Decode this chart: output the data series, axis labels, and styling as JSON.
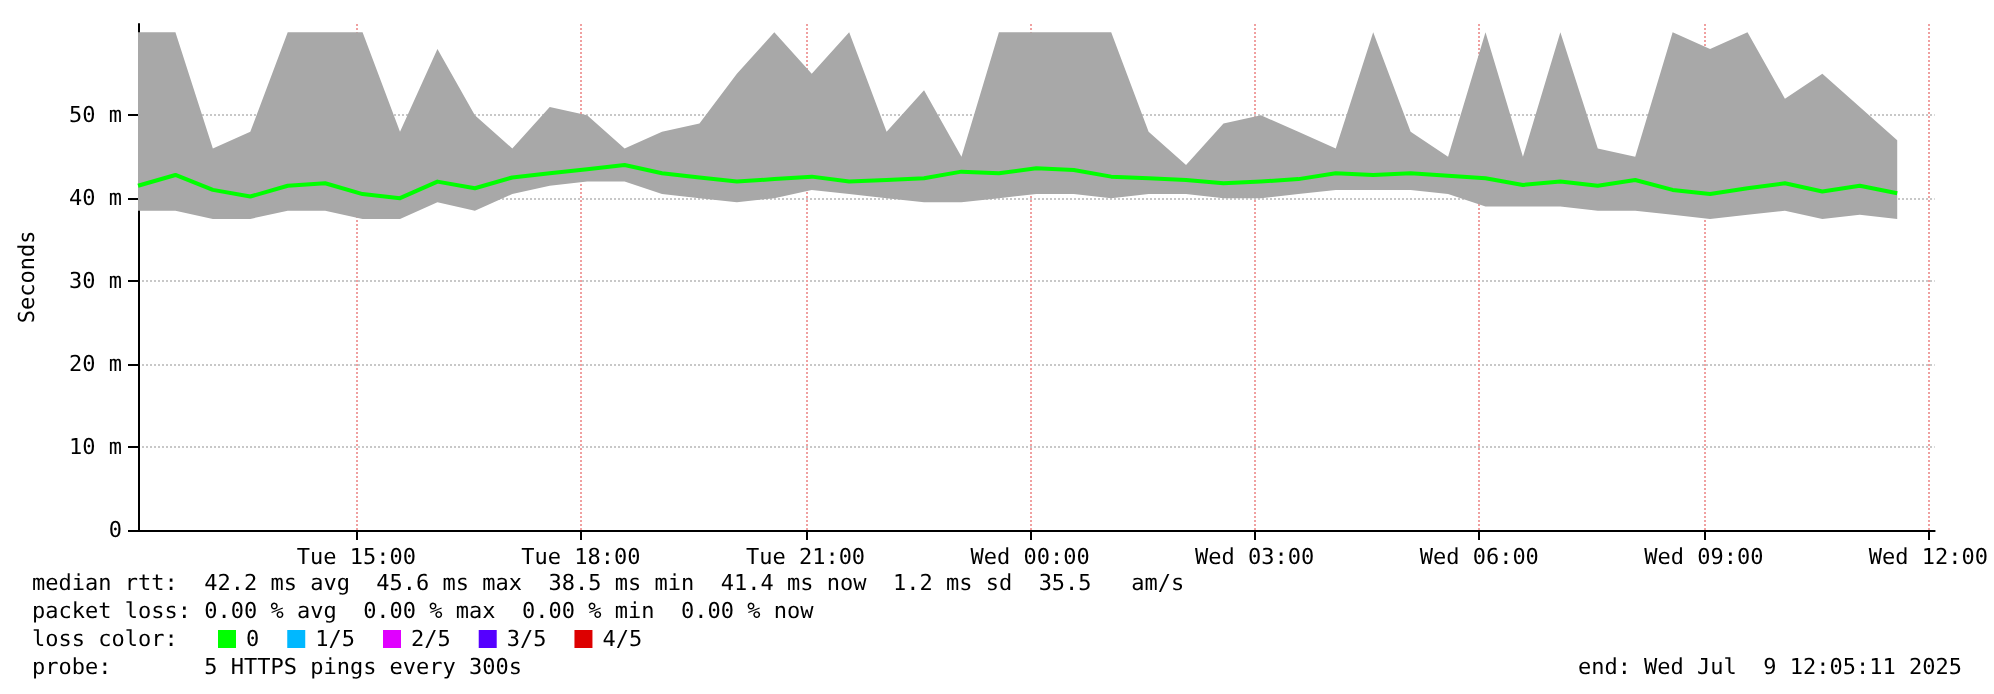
{
  "chart_data": {
    "type": "line",
    "ylabel": "Seconds",
    "legend_title": "loss color:",
    "legend": "bottom left",
    "grid": true,
    "marker": "none",
    "line_style": "solid",
    "x": [
      "2025-07-08T12:05",
      "2025-07-08T12:35",
      "2025-07-08T13:05",
      "2025-07-08T13:35",
      "2025-07-08T14:05",
      "2025-07-08T14:35",
      "2025-07-08T15:05",
      "2025-07-08T15:35",
      "2025-07-08T16:05",
      "2025-07-08T16:35",
      "2025-07-08T17:05",
      "2025-07-08T17:35",
      "2025-07-08T18:05",
      "2025-07-08T18:35",
      "2025-07-08T19:05",
      "2025-07-08T19:35",
      "2025-07-08T20:05",
      "2025-07-08T20:35",
      "2025-07-08T21:05",
      "2025-07-08T21:35",
      "2025-07-08T22:05",
      "2025-07-08T22:35",
      "2025-07-08T23:05",
      "2025-07-08T23:35",
      "2025-07-09T00:05",
      "2025-07-09T00:35",
      "2025-07-09T01:05",
      "2025-07-09T01:35",
      "2025-07-09T02:05",
      "2025-07-09T02:35",
      "2025-07-09T03:05",
      "2025-07-09T03:35",
      "2025-07-09T04:05",
      "2025-07-09T04:35",
      "2025-07-09T05:05",
      "2025-07-09T05:35",
      "2025-07-09T06:05",
      "2025-07-09T06:35",
      "2025-07-09T07:05",
      "2025-07-09T07:35",
      "2025-07-09T08:05",
      "2025-07-09T08:35",
      "2025-07-09T09:05",
      "2025-07-09T09:35",
      "2025-07-09T10:05",
      "2025-07-09T10:35",
      "2025-07-09T11:05",
      "2025-07-09T11:35"
    ],
    "series": [
      {
        "name": "0",
        "color": "#00ff00",
        "values": [
          41.5,
          42.8,
          41,
          40.2,
          41.5,
          41.8,
          40.5,
          40,
          42,
          41.2,
          42.5,
          43,
          43.5,
          44,
          43,
          42.5,
          42,
          42.3,
          42.6,
          42,
          42.2,
          42.4,
          43.2,
          43,
          43.6,
          43.4,
          42.6,
          42.4,
          42.2,
          41.8,
          42,
          42.3,
          43,
          42.8,
          43,
          42.7,
          42.4,
          41.6,
          42,
          41.5,
          42.2,
          41,
          40.5,
          41.2,
          41.8,
          40.8,
          41.5,
          40.6
        ],
        "lower": [
          38.5,
          38.5,
          37.5,
          37.5,
          38.5,
          38.5,
          37.5,
          37.5,
          39.5,
          38.5,
          40.5,
          41.5,
          42,
          42,
          40.5,
          40,
          39.5,
          40,
          41,
          40.5,
          40,
          39.5,
          39.5,
          40,
          40.5,
          40.5,
          40,
          40.5,
          40.5,
          40,
          40,
          40.5,
          41,
          41,
          41,
          40.5,
          39,
          39,
          39,
          38.5,
          38.5,
          38,
          37.5,
          38,
          38.5,
          37.5,
          38,
          37.5
        ],
        "upper": [
          60,
          60,
          46,
          48,
          60,
          60,
          60,
          48,
          58,
          50,
          46,
          51,
          50,
          46,
          48,
          49,
          55,
          60,
          55,
          60,
          48,
          53,
          45,
          60,
          60,
          60,
          60,
          48,
          44,
          49,
          50,
          48,
          46,
          60,
          48,
          45,
          60,
          45,
          60,
          46,
          45,
          60,
          58,
          60,
          52,
          55,
          51,
          47
        ]
      },
      {
        "name": "1/5",
        "color": "#00b8ff",
        "values": [
          null,
          null,
          null,
          null,
          null,
          null,
          null,
          null,
          null,
          null,
          null,
          null,
          null,
          null,
          null,
          null,
          null,
          null,
          null,
          null,
          null,
          null,
          null,
          null,
          null,
          null,
          null,
          null,
          null,
          null,
          null,
          null,
          null,
          null,
          null,
          null,
          null,
          null,
          null,
          null,
          null,
          null,
          null,
          null,
          null,
          null,
          null,
          null
        ]
      },
      {
        "name": "2/5",
        "color": "#e000ff",
        "values": [
          null,
          null,
          null,
          null,
          null,
          null,
          null,
          null,
          null,
          null,
          null,
          null,
          null,
          null,
          null,
          null,
          null,
          null,
          null,
          null,
          null,
          null,
          null,
          null,
          null,
          null,
          null,
          null,
          null,
          null,
          null,
          null,
          null,
          null,
          null,
          null,
          null,
          null,
          null,
          null,
          null,
          null,
          null,
          null,
          null,
          null,
          null,
          null
        ]
      },
      {
        "name": "3/5",
        "color": "#5500ff",
        "values": [
          null,
          null,
          null,
          null,
          null,
          null,
          null,
          null,
          null,
          null,
          null,
          null,
          null,
          null,
          null,
          null,
          null,
          null,
          null,
          null,
          null,
          null,
          null,
          null,
          null,
          null,
          null,
          null,
          null,
          null,
          null,
          null,
          null,
          null,
          null,
          null,
          null,
          null,
          null,
          null,
          null,
          null,
          null,
          null,
          null,
          null,
          null,
          null
        ]
      },
      {
        "name": "4/5",
        "color": "#dd0000",
        "values": [
          null,
          null,
          null,
          null,
          null,
          null,
          null,
          null,
          null,
          null,
          null,
          null,
          null,
          null,
          null,
          null,
          null,
          null,
          null,
          null,
          null,
          null,
          null,
          null,
          null,
          null,
          null,
          null,
          null,
          null,
          null,
          null,
          null,
          null,
          null,
          null,
          null,
          null,
          null,
          null,
          null,
          null,
          null,
          null,
          null,
          null,
          null,
          null
        ]
      }
    ],
    "xlim": [
      "2025-07-08T12:05",
      "2025-07-09T12:05"
    ],
    "xticks": [
      {
        "value": "2025-07-08T15:00",
        "label": "Tue 15:00"
      },
      {
        "value": "2025-07-08T18:00",
        "label": "Tue 18:00"
      },
      {
        "value": "2025-07-08T21:00",
        "label": "Tue 21:00"
      },
      {
        "value": "2025-07-09T00:00",
        "label": "Wed 00:00"
      },
      {
        "value": "2025-07-09T03:00",
        "label": "Wed 03:00"
      },
      {
        "value": "2025-07-09T06:00",
        "label": "Wed 06:00"
      },
      {
        "value": "2025-07-09T09:00",
        "label": "Wed 09:00"
      },
      {
        "value": "2025-07-09T12:00",
        "label": "Wed 12:00"
      }
    ],
    "ylim": [
      0,
      61
    ],
    "yticks": [
      0,
      {
        "value": 10,
        "label": "10 m"
      },
      {
        "value": 20,
        "label": "20 m"
      },
      {
        "value": 30,
        "label": "30 m"
      },
      {
        "value": 40,
        "label": "40 m"
      },
      {
        "value": 50,
        "label": "50 m"
      }
    ],
    "annotations": [
      "median rtt:  42.2 ms avg  45.6 ms max  38.5 ms min  41.4 ms now  1.2 ms sd  35.5   am/s",
      "packet loss: 0.00 % avg  0.00 % max  0.00 % min  0.00 % now",
      "probe:       5 HTTPS pings every 300s",
      "end: Wed Jul  9 12:05:11 2025"
    ]
  }
}
